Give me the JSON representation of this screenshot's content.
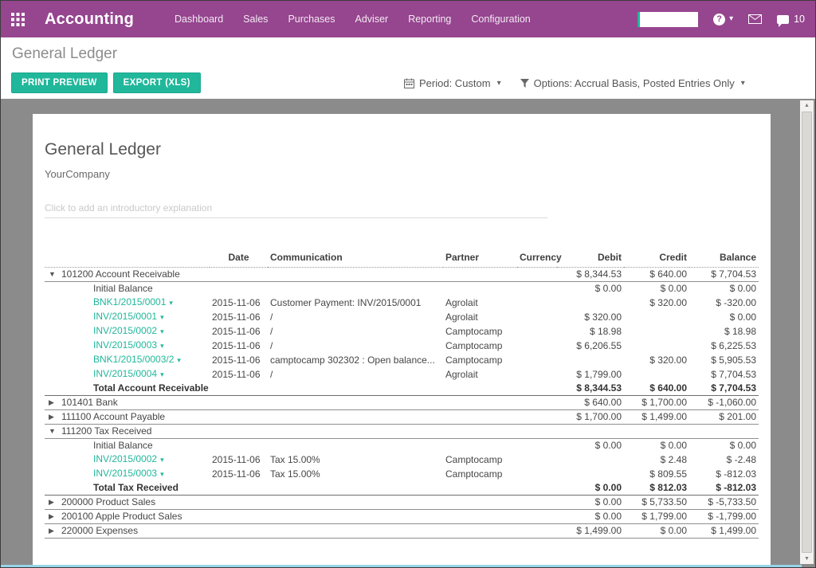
{
  "colors": {
    "navbar": "#96458f",
    "accent_teal": "#21b79b",
    "content_bg": "#8b8b8b"
  },
  "nav": {
    "app_title": "Accounting",
    "items": [
      "Dashboard",
      "Sales",
      "Purchases",
      "Adviser",
      "Reporting",
      "Configuration"
    ],
    "chat_count": "10"
  },
  "icons": {
    "apps": "grid-3x3",
    "help": "question-circle",
    "mail": "envelope",
    "chat": "speech-bubble",
    "period": "calendar",
    "options": "funnel",
    "expand_open": "▼",
    "expand_closed": "▶",
    "link_caret": "▾",
    "dropdown_caret": "▾",
    "scroll_up": "▲",
    "scroll_down": "▼"
  },
  "breadcrumb": {
    "title": "General Ledger"
  },
  "toolbar": {
    "print_label": "PRINT PREVIEW",
    "export_label": "EXPORT (XLS)",
    "period_label": "Period: Custom",
    "options_label": "Options: Accrual Basis, Posted Entries Only"
  },
  "report": {
    "title": "General Ledger",
    "company": "YourCompany",
    "intro_placeholder": "Click to add an introductory explanation"
  },
  "table": {
    "headers": {
      "name": "",
      "date": "Date",
      "communication": "Communication",
      "partner": "Partner",
      "currency": "Currency",
      "debit": "Debit",
      "credit": "Credit",
      "balance": "Balance"
    },
    "rows": [
      {
        "type": "account",
        "expanded": true,
        "label": "101200 Account Receivable",
        "debit": "$ 8,344.53",
        "credit": "$ 640.00",
        "balance": "$ 7,704.53"
      },
      {
        "type": "detail",
        "link": false,
        "label": "Initial Balance",
        "debit": "$ 0.00",
        "credit": "$ 0.00",
        "balance": "$ 0.00"
      },
      {
        "type": "detail",
        "link": true,
        "label": "BNK1/2015/0001",
        "date": "2015-11-06",
        "communication": "Customer Payment: INV/2015/0001",
        "partner": "Agrolait",
        "credit": "$ 320.00",
        "balance": "$ -320.00"
      },
      {
        "type": "detail",
        "link": true,
        "label": "INV/2015/0001",
        "date": "2015-11-06",
        "communication": "/",
        "partner": "Agrolait",
        "debit": "$ 320.00",
        "balance": "$ 0.00"
      },
      {
        "type": "detail",
        "link": true,
        "label": "INV/2015/0002",
        "date": "2015-11-06",
        "communication": "/",
        "partner": "Camptocamp",
        "debit": "$ 18.98",
        "balance": "$ 18.98"
      },
      {
        "type": "detail",
        "link": true,
        "label": "INV/2015/0003",
        "date": "2015-11-06",
        "communication": "/",
        "partner": "Camptocamp",
        "debit": "$ 6,206.55",
        "balance": "$ 6,225.53"
      },
      {
        "type": "detail",
        "link": true,
        "label": "BNK1/2015/0003/2",
        "date": "2015-11-06",
        "communication": "camptocamp 302302 : Open balance...",
        "partner": "Camptocamp",
        "credit": "$ 320.00",
        "balance": "$ 5,905.53"
      },
      {
        "type": "detail",
        "link": true,
        "label": "INV/2015/0004",
        "date": "2015-11-06",
        "communication": "/",
        "partner": "Agrolait",
        "debit": "$ 1,799.00",
        "balance": "$ 7,704.53"
      },
      {
        "type": "total",
        "label": "Total Account Receivable",
        "debit": "$ 8,344.53",
        "credit": "$ 640.00",
        "balance": "$ 7,704.53"
      },
      {
        "type": "account",
        "expanded": false,
        "label": "101401 Bank",
        "debit": "$ 640.00",
        "credit": "$ 1,700.00",
        "balance": "$ -1,060.00"
      },
      {
        "type": "account",
        "expanded": false,
        "label": "111100 Account Payable",
        "debit": "$ 1,700.00",
        "credit": "$ 1,499.00",
        "balance": "$ 201.00"
      },
      {
        "type": "account",
        "expanded": true,
        "label": "111200 Tax Received"
      },
      {
        "type": "detail",
        "link": false,
        "label": "Initial Balance",
        "debit": "$ 0.00",
        "credit": "$ 0.00",
        "balance": "$ 0.00"
      },
      {
        "type": "detail",
        "link": true,
        "label": "INV/2015/0002",
        "date": "2015-11-06",
        "communication": "Tax 15.00%",
        "partner": "Camptocamp",
        "credit": "$ 2.48",
        "balance": "$ -2.48"
      },
      {
        "type": "detail",
        "link": true,
        "label": "INV/2015/0003",
        "date": "2015-11-06",
        "communication": "Tax 15.00%",
        "partner": "Camptocamp",
        "credit": "$ 809.55",
        "balance": "$ -812.03"
      },
      {
        "type": "total",
        "label": "Total Tax Received",
        "debit": "$ 0.00",
        "credit": "$ 812.03",
        "balance": "$ -812.03"
      },
      {
        "type": "account",
        "expanded": false,
        "label": "200000 Product Sales",
        "debit": "$ 0.00",
        "credit": "$ 5,733.50",
        "balance": "$ -5,733.50"
      },
      {
        "type": "account",
        "expanded": false,
        "label": "200100 Apple Product Sales",
        "debit": "$ 0.00",
        "credit": "$ 1,799.00",
        "balance": "$ -1,799.00"
      },
      {
        "type": "account",
        "expanded": false,
        "label": "220000 Expenses",
        "debit": "$ 1,499.00",
        "credit": "$ 0.00",
        "balance": "$ 1,499.00"
      }
    ]
  }
}
